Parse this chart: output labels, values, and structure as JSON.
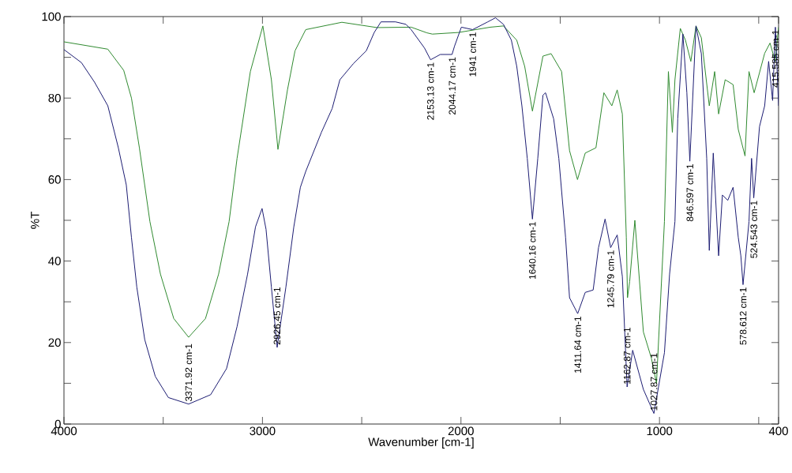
{
  "chart_data": {
    "type": "line",
    "xlabel": "Wavenumber [cm-1]",
    "ylabel": "%T",
    "xlim": [
      4000,
      400
    ],
    "ylim": [
      0,
      100
    ],
    "xticks": [
      4000,
      {
        "value": 3500,
        "label": null
      },
      3000,
      {
        "value": 2500,
        "label": null
      },
      2000,
      {
        "value": 1500,
        "label": null
      },
      1000,
      {
        "value": 500,
        "label": null
      },
      400
    ],
    "yticks": [
      0,
      {
        "value": 10,
        "label": null
      },
      20,
      {
        "value": 30,
        "label": null
      },
      40,
      {
        "value": 50,
        "label": null
      },
      60,
      {
        "value": 70,
        "label": null
      },
      80,
      {
        "value": 90,
        "label": null
      },
      100
    ],
    "grid": false,
    "marker": "none",
    "line_style": "solid",
    "series": [
      {
        "color": "#2f8a2f",
        "x": [
          4000,
          3779,
          3699,
          3660,
          3620,
          3567,
          3514,
          3447,
          3372,
          3287,
          3221,
          3168,
          3128,
          3061,
          2998,
          2955,
          2922,
          2874,
          2836,
          2782,
          2600,
          2423,
          2251,
          2171,
          2144,
          2012,
          1852,
          1786,
          1719,
          1679,
          1640,
          1587,
          1546,
          1493,
          1453,
          1413,
          1374,
          1320,
          1280,
          1240,
          1213,
          1187,
          1167,
          1161,
          1150,
          1124,
          1081,
          1041,
          1015,
          975,
          955,
          935,
          922,
          895,
          869,
          842,
          816,
          789,
          749,
          722,
          702,
          669,
          629,
          603,
          569,
          549,
          523,
          470,
          443,
          417,
          400
        ],
        "values": [
          93.8,
          92,
          86.8,
          80,
          67.8,
          49.7,
          36.8,
          25.9,
          21.3,
          25.9,
          36.8,
          49.7,
          65.2,
          86.5,
          97.7,
          84.5,
          67.4,
          82,
          91.6,
          96.8,
          98.6,
          97.3,
          97.4,
          96,
          95.7,
          96.1,
          97.4,
          97.7,
          94.2,
          87.8,
          76.8,
          90.3,
          90.9,
          86.5,
          67.1,
          60,
          66.5,
          67.8,
          81.3,
          78.1,
          82,
          76.1,
          45.8,
          31,
          35,
          50,
          22.6,
          16.2,
          10,
          49.7,
          86.5,
          71.6,
          84.5,
          97.1,
          94.2,
          89,
          97.7,
          94.8,
          78.1,
          86.5,
          76.1,
          84.5,
          83.3,
          72.3,
          65.8,
          86.5,
          81.3,
          91,
          93.5,
          89,
          97.4
        ]
      },
      {
        "color": "#1c1c72",
        "x": [
          4000,
          3912,
          3846,
          3779,
          3726,
          3686,
          3660,
          3633,
          3593,
          3540,
          3474,
          3372,
          3261,
          3181,
          3128,
          3075,
          3035,
          3002,
          2982,
          2955,
          2926,
          2882,
          2842,
          2809,
          2782,
          2703,
          2649,
          2610,
          2543,
          2477,
          2437,
          2403,
          2330,
          2277,
          2251,
          2184,
          2153,
          2104,
          2045,
          2032,
          1998,
          1941,
          1865,
          1826,
          1786,
          1746,
          1719,
          1693,
          1666,
          1640,
          1613,
          1587,
          1574,
          1533,
          1507,
          1473,
          1453,
          1412,
          1374,
          1334,
          1307,
          1274,
          1246,
          1213,
          1187,
          1163,
          1135,
          1081,
          1028,
          975,
          949,
          922,
          908,
          882,
          862,
          847,
          816,
          789,
          762,
          749,
          729,
          702,
          683,
          656,
          629,
          603,
          590,
          579,
          549,
          536,
          525,
          496,
          470,
          450,
          430,
          416,
          400
        ],
        "values": [
          91.9,
          88.7,
          83.9,
          78.1,
          67.8,
          58.7,
          45.8,
          33.6,
          20.7,
          11.7,
          6.5,
          4.9,
          7.2,
          13.6,
          23.9,
          36.8,
          48.4,
          52.9,
          47.8,
          33.6,
          18.8,
          33.6,
          48.4,
          58.1,
          62,
          71.6,
          77.4,
          84.5,
          88.4,
          91.6,
          96.1,
          98.7,
          98.7,
          98.1,
          96.8,
          92.3,
          89.4,
          90.7,
          90.7,
          92.8,
          97.4,
          96.8,
          98.7,
          99.7,
          98.1,
          94.2,
          87.8,
          78.1,
          65.2,
          50.3,
          65.2,
          80.7,
          81.3,
          74.9,
          65.2,
          45.8,
          31,
          27.1,
          32.3,
          32.9,
          43.3,
          50.3,
          43.3,
          46.4,
          36.2,
          9.1,
          18.1,
          8.5,
          2.6,
          17.5,
          36.8,
          49.7,
          74.9,
          95.7,
          81.3,
          64.5,
          97.7,
          90.9,
          65.2,
          42.6,
          66.5,
          41.3,
          56.2,
          54.9,
          58.1,
          45.8,
          41.3,
          34.2,
          49.7,
          65.2,
          55.5,
          73,
          78.1,
          89,
          79.4,
          97.4,
          78.1
        ]
      }
    ],
    "annotations": [
      {
        "text": "3371.92 cm-1",
        "x": 3371.92,
        "y": 4.9
      },
      {
        "text": "2926.45 cm-1",
        "x": 2926.45,
        "y": 18.8
      },
      {
        "text": "2153.13 cm-1",
        "x": 2153.13,
        "y": 89.4
      },
      {
        "text": "2044.17 cm-1",
        "x": 2044.17,
        "y": 90.7
      },
      {
        "text": "1941 cm-1",
        "x": 1941,
        "y": 96.8
      },
      {
        "text": "1640.16 cm-1",
        "x": 1640.16,
        "y": 50.3
      },
      {
        "text": "1411.64 cm-1",
        "x": 1411.64,
        "y": 27.1
      },
      {
        "text": "1245.79 cm-1",
        "x": 1245.79,
        "y": 43.3
      },
      {
        "text": "1162.87 cm-1",
        "x": 1162.87,
        "y": 9.1
      },
      {
        "text": "1027.87 cm-1",
        "x": 1027.87,
        "y": 2.6
      },
      {
        "text": "846.597 cm-1",
        "x": 846.597,
        "y": 64.5
      },
      {
        "text": "578.612 cm-1",
        "x": 578.612,
        "y": 34.2
      },
      {
        "text": "524.543 cm-1",
        "x": 524.543,
        "y": 55.5
      },
      {
        "text": "415.585 cm-1",
        "x": 415.585,
        "y": 97.4
      }
    ]
  }
}
